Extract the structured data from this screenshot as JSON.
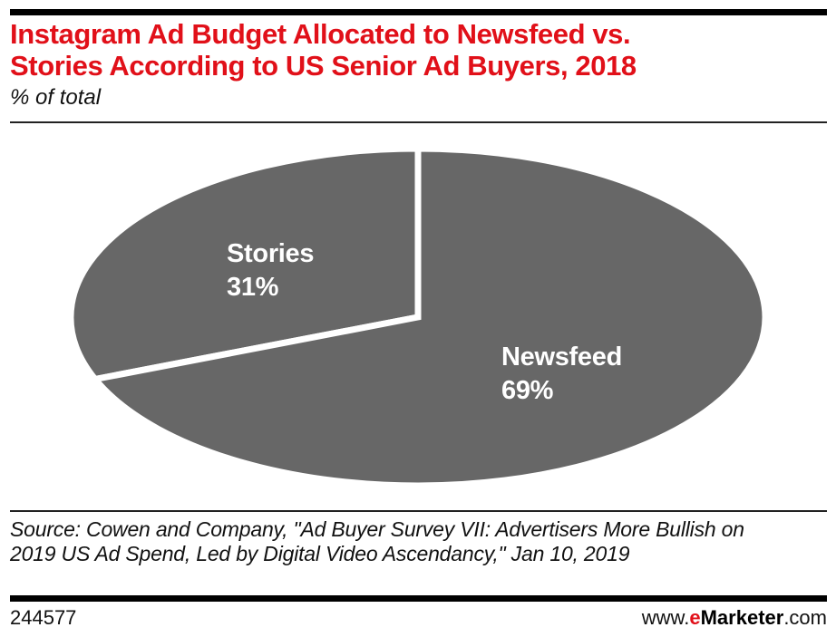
{
  "theme": {
    "red": "#e11019",
    "black": "#000000",
    "pie_gray": "#676767",
    "label_white": "#ffffff"
  },
  "header": {
    "title_lines": [
      "Instagram Ad Budget Allocated to Newsfeed vs.",
      "Stories According to US Senior Ad Buyers, 2018"
    ],
    "subtitle": "% of total"
  },
  "chart_data": {
    "type": "pie",
    "title": "Instagram Ad Budget Allocated to Newsfeed vs. Stories According to US Senior Ad Buyers, 2018",
    "subtitle": "% of total",
    "slices": [
      {
        "label": "Stories",
        "value": 31,
        "display": "31%"
      },
      {
        "label": "Newsfeed",
        "value": 69,
        "display": "69%"
      }
    ],
    "slice_color": "#676767",
    "divider_color": "#ffffff",
    "label_color": "#ffffff",
    "start_angle_deg": 90,
    "direction": "counterclockwise",
    "legend": "none",
    "shape": "ellipse"
  },
  "source": {
    "text": "Source: Cowen and Company, \"Ad Buyer Survey VII: Advertisers More Bullish on 2019 US Ad Spend, Led by Digital Video Ascendancy,\" Jan 10, 2019"
  },
  "footer": {
    "left_id": "244577",
    "url_prefix": "www.",
    "brand_e": "e",
    "brand_rest": "Marketer",
    "url_suffix": ".com"
  }
}
